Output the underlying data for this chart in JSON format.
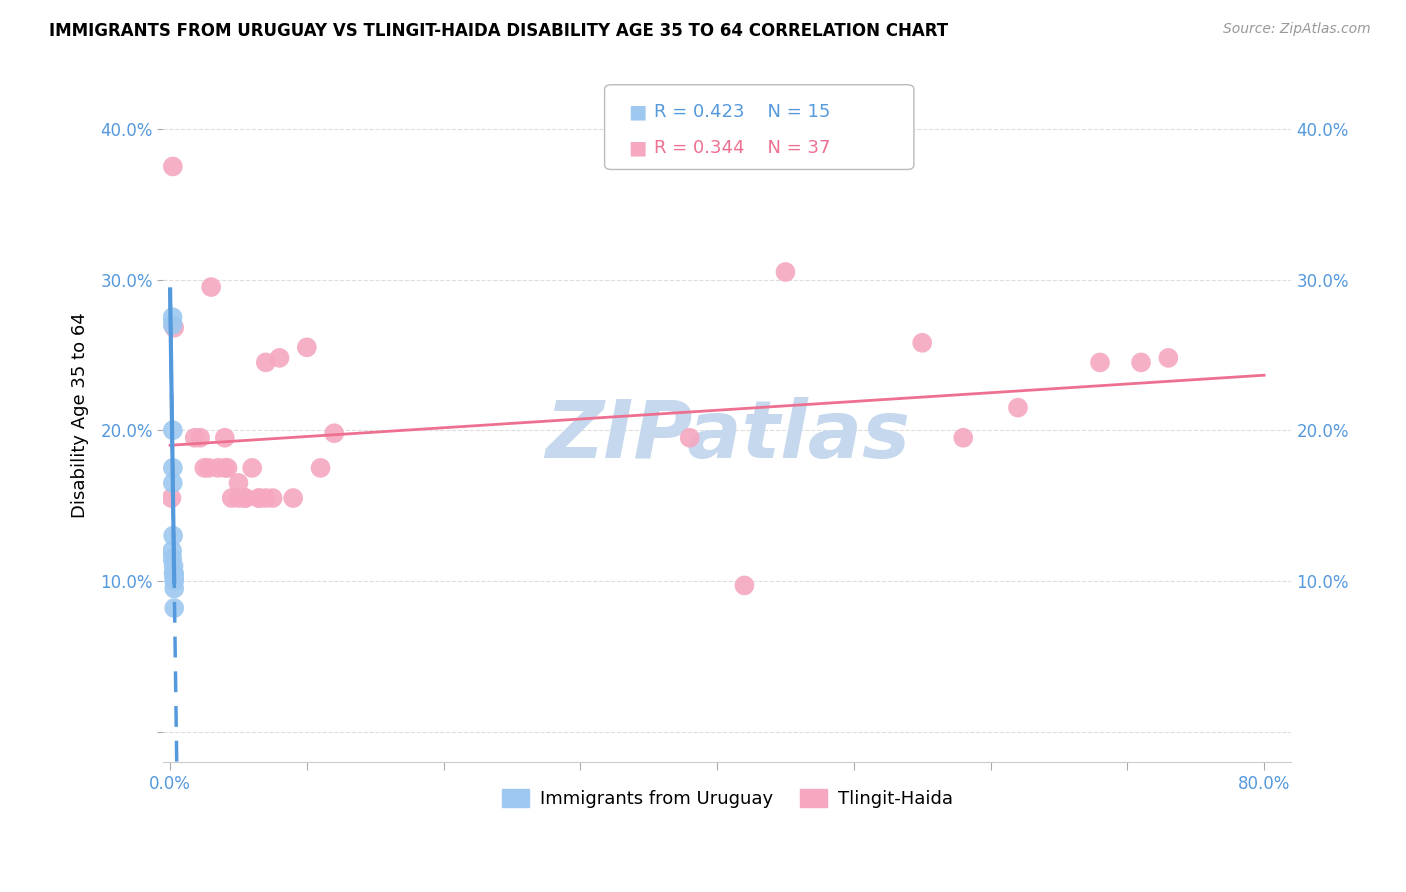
{
  "title": "IMMIGRANTS FROM URUGUAY VS TLINGIT-HAIDA DISABILITY AGE 35 TO 64 CORRELATION CHART",
  "source": "Source: ZipAtlas.com",
  "xlabel": "",
  "ylabel": "Disability Age 35 to 64",
  "xlim": [
    -0.005,
    0.82
  ],
  "ylim": [
    -0.02,
    0.44
  ],
  "xticks": [
    0.0,
    0.1,
    0.2,
    0.3,
    0.4,
    0.5,
    0.6,
    0.7,
    0.8
  ],
  "xtick_labels": [
    "0.0%",
    "",
    "",
    "",
    "",
    "",
    "",
    "",
    "80.0%"
  ],
  "yticks": [
    0.0,
    0.1,
    0.2,
    0.3,
    0.4
  ],
  "ytick_labels": [
    "",
    "10.0%",
    "20.0%",
    "30.0%",
    "40.0%"
  ],
  "legend_r1": "R = 0.423",
  "legend_n1": "N = 15",
  "legend_r2": "R = 0.344",
  "legend_n2": "N = 37",
  "series1_name": "Immigrants from Uruguay",
  "series2_name": "Tlingit-Haida",
  "series1_color": "#9EC8F0",
  "series2_color": "#F5A8C0",
  "trendline1_color": "#5599DD",
  "trendline2_color": "#EE7090",
  "watermark": "ZIPatlas",
  "watermark_color": "#C5D8EE",
  "series1_x": [
    0.0015,
    0.0015,
    0.0018,
    0.0018,
    0.002,
    0.002,
    0.002,
    0.0022,
    0.0025,
    0.0025,
    0.003,
    0.003,
    0.003,
    0.003,
    0.003
  ],
  "series1_y": [
    0.115,
    0.12,
    0.27,
    0.275,
    0.2,
    0.175,
    0.165,
    0.13,
    0.11,
    0.105,
    0.105,
    0.102,
    0.1,
    0.095,
    0.082
  ],
  "series2_x": [
    0.001,
    0.002,
    0.003,
    0.018,
    0.022,
    0.025,
    0.028,
    0.03,
    0.035,
    0.04,
    0.04,
    0.042,
    0.045,
    0.05,
    0.05,
    0.055,
    0.055,
    0.06,
    0.065,
    0.065,
    0.07,
    0.07,
    0.075,
    0.08,
    0.09,
    0.1,
    0.11,
    0.12,
    0.38,
    0.42,
    0.45,
    0.55,
    0.58,
    0.62,
    0.68,
    0.71,
    0.73
  ],
  "series2_y": [
    0.155,
    0.375,
    0.268,
    0.195,
    0.195,
    0.175,
    0.175,
    0.295,
    0.175,
    0.195,
    0.175,
    0.175,
    0.155,
    0.165,
    0.155,
    0.155,
    0.155,
    0.175,
    0.155,
    0.155,
    0.155,
    0.245,
    0.155,
    0.248,
    0.155,
    0.255,
    0.175,
    0.198,
    0.195,
    0.097,
    0.305,
    0.258,
    0.195,
    0.215,
    0.245,
    0.245,
    0.248
  ],
  "trendline1_x0": 0.0,
  "trendline1_x1": 0.005,
  "trendline2_x0": 0.0,
  "trendline2_x1": 0.8
}
